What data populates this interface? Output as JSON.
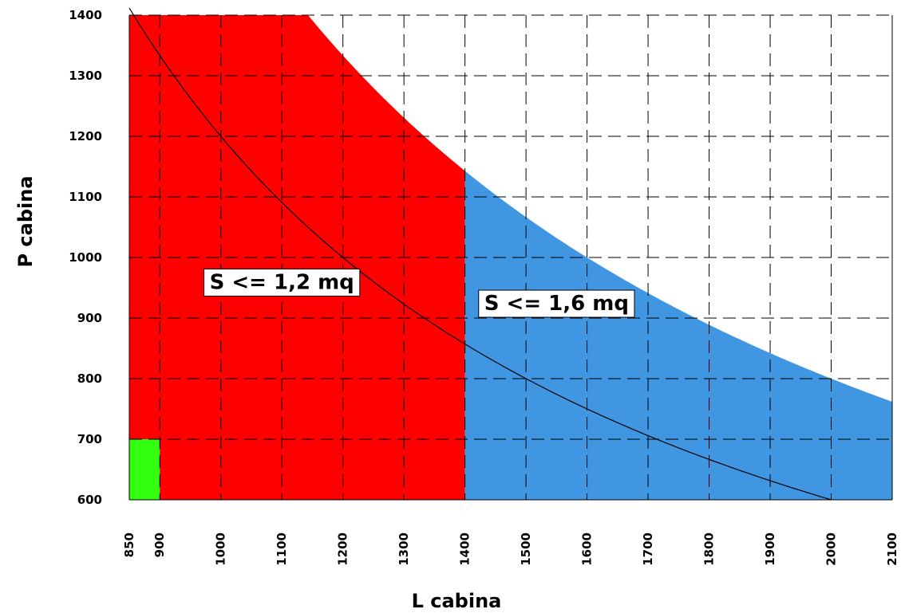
{
  "chart_data": {
    "type": "area",
    "xlabel": "L cabina",
    "ylabel": "P cabina",
    "xlim": [
      850,
      2100
    ],
    "ylim": [
      600,
      1400
    ],
    "x_ticks": [
      "850",
      "900",
      "1000",
      "1100",
      "1200",
      "1300",
      "1400",
      "1500",
      "1600",
      "1700",
      "1800",
      "1900",
      "2000",
      "2100"
    ],
    "y_ticks": [
      "600",
      "700",
      "800",
      "900",
      "1000",
      "1100",
      "1200",
      "1300",
      "1400"
    ],
    "grid": "dashed",
    "colors": {
      "red_region": "#ff0000",
      "blue_region": "#4196e1",
      "green_region": "#33ff11",
      "curve": "#000000",
      "grid": "#000000"
    },
    "regions": [
      {
        "label": "S <= 1,2 mq",
        "color": "#ff0000",
        "x_range": [
          850,
          1400
        ],
        "upper_bound_area_m2": 1.6,
        "y_cap": 1400
      },
      {
        "label": "S <= 1,6 mq",
        "color": "#4196e1",
        "x_range": [
          1400,
          2100
        ],
        "upper_bound_area_m2": 1.6
      },
      {
        "label": "",
        "color": "#33ff11",
        "x_range": [
          850,
          900
        ],
        "y_range": [
          600,
          700
        ]
      }
    ],
    "curves": [
      {
        "area_m2": 1.2,
        "x_range": [
          850,
          2000
        ]
      }
    ],
    "annotations": [
      {
        "text": "S <= 1,2 mq",
        "x": 1100,
        "y": 960
      },
      {
        "text": "S <= 1,6 mq",
        "x": 1550,
        "y": 925
      }
    ]
  }
}
